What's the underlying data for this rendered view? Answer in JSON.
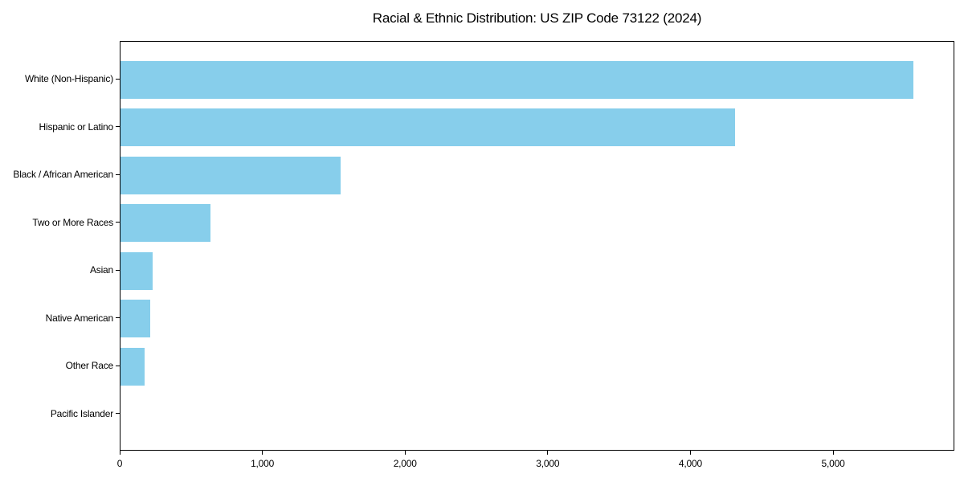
{
  "figure": {
    "title": "Racial & Ethnic Distribution: US ZIP Code 73122 (2024)"
  },
  "chart_data": {
    "type": "bar",
    "orientation": "horizontal",
    "title": "Racial & Ethnic Distribution: US ZIP Code 73122 (2024)",
    "categories": [
      "White (Non-Hispanic)",
      "Hispanic or Latino",
      "Black / African American",
      "Two or More Races",
      "Asian",
      "Native American",
      "Other Race",
      "Pacific Islander"
    ],
    "values": [
      5560,
      4310,
      1545,
      630,
      225,
      210,
      170,
      0
    ],
    "xlabel": "",
    "ylabel": "",
    "xlim": [
      0,
      5850
    ],
    "x_ticks": [
      {
        "value": 0,
        "label": "0"
      },
      {
        "value": 1000,
        "label": "1,000"
      },
      {
        "value": 2000,
        "label": "2,000"
      },
      {
        "value": 3000,
        "label": "3,000"
      },
      {
        "value": 4000,
        "label": "4,000"
      },
      {
        "value": 5000,
        "label": "5,000"
      }
    ],
    "bar_color": "#87CEEB",
    "background_color": "#FFFFFF",
    "axis_color": "#000000",
    "grid": false,
    "legend": false
  }
}
